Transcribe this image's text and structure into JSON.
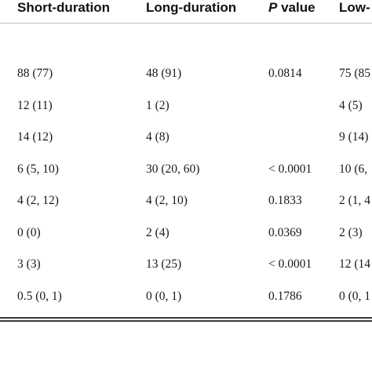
{
  "table": {
    "headers": {
      "short_duration": "Short-duration",
      "long_duration": "Long-duration",
      "p_letter": "P",
      "p_suffix": " value",
      "low_partial": "Low-"
    },
    "rows": [
      {
        "short": "88 (77)",
        "long": "48 (91)",
        "p": "0.0814",
        "low": "75 (85"
      },
      {
        "short": "12 (11)",
        "long": "1 (2)",
        "p": "",
        "low": "4 (5)"
      },
      {
        "short": "14 (12)",
        "long": "4 (8)",
        "p": "",
        "low": "9 (14)"
      },
      {
        "short": "6 (5, 10)",
        "long": "30 (20, 60)",
        "p": "< 0.0001",
        "low": "10 (6,"
      },
      {
        "short": "4 (2, 12)",
        "long": "4 (2, 10)",
        "p": "0.1833",
        "low": "2 (1, 4"
      },
      {
        "short": "0 (0)",
        "long": "2 (4)",
        "p": "0.0369",
        "low": "2 (3)"
      },
      {
        "short": "3 (3)",
        "long": "13 (25)",
        "p": "< 0.0001",
        "low": "12 (14"
      },
      {
        "short": "0.5 (0, 1)",
        "long": "0 (0, 1)",
        "p": "0.1786",
        "low": "0 (0, 1"
      }
    ]
  }
}
